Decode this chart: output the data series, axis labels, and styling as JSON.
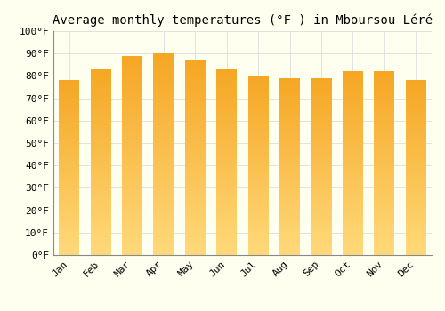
{
  "title": "Average monthly temperatures (°F ) in Mboursou Léré",
  "months": [
    "Jan",
    "Feb",
    "Mar",
    "Apr",
    "May",
    "Jun",
    "Jul",
    "Aug",
    "Sep",
    "Oct",
    "Nov",
    "Dec"
  ],
  "values": [
    78,
    83,
    89,
    90,
    87,
    83,
    80,
    79,
    79,
    82,
    82,
    78
  ],
  "bar_color_dark": "#F5A623",
  "bar_color_light": "#FFD97A",
  "bar_edge_color": "none",
  "background_color": "#FFFFF0",
  "grid_color": "#DDDDDD",
  "spine_color": "#888888",
  "title_fontsize": 10,
  "tick_fontsize": 8,
  "ylim": [
    0,
    100
  ],
  "yticks": [
    0,
    10,
    20,
    30,
    40,
    50,
    60,
    70,
    80,
    90,
    100
  ],
  "ytick_labels": [
    "0°F",
    "10°F",
    "20°F",
    "30°F",
    "40°F",
    "50°F",
    "60°F",
    "70°F",
    "80°F",
    "90°F",
    "100°F"
  ],
  "bar_width": 0.65
}
